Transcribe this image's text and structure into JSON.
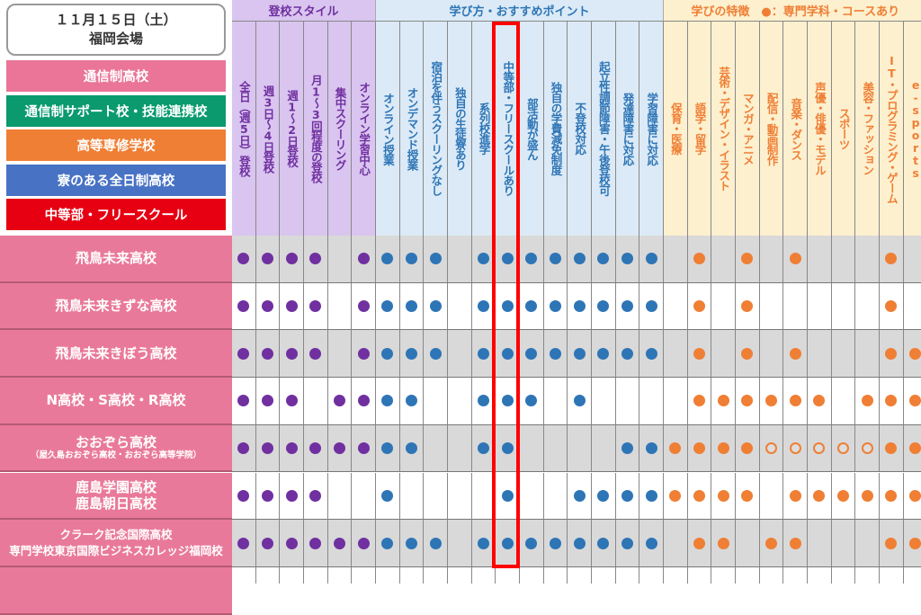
{
  "legend": {
    "date": "１１月１５日（土）",
    "venue": "福岡会場",
    "items": [
      {
        "label": "通信制高校",
        "color": "#ea7598"
      },
      {
        "label": "通信制サポート校・技能連携校",
        "color": "#0a9a6e"
      },
      {
        "label": "高等専修学校",
        "color": "#ef7f35"
      },
      {
        "label": "寮のある全日制高校",
        "color": "#4872c4"
      },
      {
        "label": "中等部・フリースクール",
        "color": "#e60012"
      }
    ]
  },
  "groups": [
    {
      "title": "登校スタイル",
      "bg": "#d9c5ef",
      "fg": "#7030a0",
      "dot": "#7030a0",
      "columns": [
        "全日（週5日）登校",
        "週3日～4日登校",
        "週1～2日登校",
        "月1～3回程度の登校",
        "集中スクーリング",
        "オンライン学習中心"
      ]
    },
    {
      "title": "学び方・おすすめポイント",
      "bg": "#dbeaf6",
      "fg": "#2e75b6",
      "dot": "#2e75b6",
      "columns": [
        "オンライン授業",
        "オンデマンド授業",
        "宿泊を伴うスクーリングなし",
        "独自の生徒寮あり",
        "系列校進学",
        "中等部・フリースクールあり",
        "部活動が盛ん",
        "独自の学費減免制度",
        "不登校対応",
        "起立性調節障害・午後登校可",
        "発達障害に対応",
        "学習障害に対応"
      ]
    },
    {
      "title": "学びの特徴　●：専門学科・コースあり",
      "bg": "#fdf0cf",
      "fg": "#ef7f35",
      "dot": "#ef7f35",
      "columns": [
        "保育・医療",
        "語学・留学",
        "芸術・デザイン・イラスト",
        "マンガ・アニメ",
        "配信・動画制作",
        "音楽・ダンス",
        "声優・俳優・モデル",
        "スポーツ",
        "美容・ファッション",
        "IT・プログラミング・ゲーム",
        "e-sports"
      ]
    }
  ],
  "highlight_column": "中等部・フリースクールあり",
  "cell_legend": {
    "1": "filled",
    "0": "none",
    "o": "hollow"
  },
  "schools": [
    {
      "name": "飛鳥未来高校",
      "marks": [
        "111101",
        "111011111111",
        "01010100010"
      ]
    },
    {
      "name": "飛鳥未来きずな高校",
      "marks": [
        "111101",
        "111011111111",
        "01010000010"
      ]
    },
    {
      "name": "飛鳥未来きぼう高校",
      "marks": [
        "111101",
        "111011111111",
        "01010100011"
      ]
    },
    {
      "name": "N高校・S高校・R高校",
      "marks": [
        "111011",
        "110011101000",
        "01111110111"
      ]
    },
    {
      "name": "おおぞら高校",
      "sub": "（屋久島おおぞら高校・おおぞら高等学院）",
      "marks": [
        "111111",
        "110011000011",
        "1111ooooo11"
      ]
    },
    {
      "name": "鹿島学園高校",
      "sub2": "鹿島朝日高校",
      "marks": [
        "111100",
        "100001001111",
        "11110111111"
      ]
    },
    {
      "name": "クラーク記念国際高校",
      "sub2": "専門学校東京国際ビジネスカレッジ福岡校",
      "small": true,
      "marks": [
        "111111",
        "111011111111",
        "01101100011"
      ]
    },
    {
      "name": "",
      "marks": [
        "000000",
        "000000000000",
        "00000000000"
      ]
    }
  ]
}
